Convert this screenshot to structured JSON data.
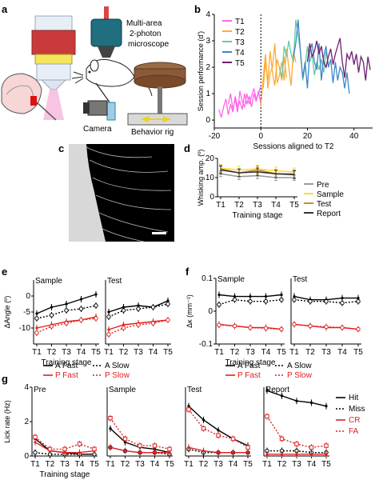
{
  "panel_labels": {
    "a": "a",
    "b": "b",
    "c": "c",
    "d": "d",
    "e": "e",
    "f": "f",
    "g": "g"
  },
  "panel_a": {
    "microscope_label_1": "Multi-area",
    "microscope_label_2": "2-photon",
    "microscope_label_3": "microscope",
    "camera_label": "Camera",
    "rig_label": "Behavior rig"
  },
  "colors": {
    "T1": "#ff66e8",
    "T2": "#ffaa33",
    "T3": "#66c9a5",
    "T4": "#3f86c9",
    "T5": "#6b1f6f",
    "pre": "#9a9a9a",
    "sample": "#ffdd33",
    "test": "#c98a40",
    "report": "#333333",
    "hit": "#000000",
    "cr": "#e02020"
  },
  "chart_data": [
    {
      "panel": "b",
      "type": "line",
      "xlabel": "Sessions aligned to T2",
      "ylabel": "Session performance (d')",
      "xlim": [
        -20,
        48
      ],
      "ylim": [
        -0.3,
        4
      ],
      "xticks": [
        -20,
        0,
        20,
        40
      ],
      "yticks": [
        0,
        1,
        2,
        3,
        4
      ],
      "series": [
        {
          "name": "T1",
          "x": [
            -18,
            -17,
            -16,
            -15,
            -14,
            -13,
            -12,
            -11,
            -10,
            -9,
            -8,
            -7,
            -6,
            -5,
            -4,
            -3,
            -2,
            -1,
            0
          ],
          "y": [
            0.4,
            0.1,
            0.5,
            0.8,
            0.2,
            0.6,
            0.3,
            0.9,
            0.5,
            0.7,
            0.4,
            1.0,
            0.6,
            0.9,
            0.5,
            1.0,
            0.7,
            1.1,
            0.6
          ]
        },
        {
          "name": "T1",
          "x": [
            -14,
            -13,
            -12,
            -11,
            -10,
            -9,
            -8,
            -7,
            -6,
            -5,
            -4,
            -3,
            -2,
            -1,
            0
          ],
          "y": [
            0.6,
            1.0,
            0.4,
            0.8,
            0.3,
            1.1,
            0.7,
            0.5,
            1.0,
            0.6,
            0.9,
            1.2,
            0.8,
            1.0,
            1.3
          ]
        },
        {
          "name": "T2",
          "x": [
            0,
            1,
            2,
            3,
            4,
            5,
            6,
            7,
            8,
            9,
            10,
            11,
            12,
            13,
            14,
            15
          ],
          "y": [
            0.5,
            1.6,
            2.5,
            1.2,
            1.8,
            2.0,
            2.9,
            1.4,
            1.7,
            2.2,
            1.5,
            2.7,
            2.0,
            1.3,
            2.6,
            2.2
          ]
        },
        {
          "name": "T2",
          "x": [
            1,
            2,
            3,
            4,
            5,
            6,
            7,
            8,
            9,
            10,
            11
          ],
          "y": [
            1.2,
            2.2,
            1.5,
            2.6,
            1.8,
            1.3,
            2.3,
            2.0,
            1.5,
            2.4,
            1.6
          ]
        },
        {
          "name": "T3",
          "x": [
            8,
            9,
            10,
            11,
            12,
            13,
            14,
            15,
            16,
            17,
            18,
            19,
            20,
            21,
            22,
            23,
            24,
            25,
            26,
            27,
            28,
            29
          ],
          "y": [
            2.0,
            1.6,
            2.8,
            2.4,
            3.0,
            2.5,
            2.2,
            3.8,
            3.2,
            2.6,
            1.5,
            2.0,
            2.8,
            2.2,
            2.5,
            1.7,
            2.2,
            1.9,
            2.3,
            1.8,
            2.6,
            2.1
          ]
        },
        {
          "name": "T4",
          "x": [
            14,
            15,
            16,
            17,
            18,
            19,
            20,
            21,
            22,
            23,
            24,
            25,
            26,
            27,
            28,
            29,
            30,
            31,
            32,
            33,
            34,
            35,
            36,
            37,
            38
          ],
          "y": [
            2.4,
            2.9,
            3.8,
            2.6,
            1.6,
            2.2,
            1.2,
            2.6,
            2.9,
            2.2,
            1.9,
            2.9,
            1.5,
            2.4,
            2.8,
            2.0,
            2.3,
            1.4,
            2.2,
            1.5,
            2.0,
            1.8,
            1.2,
            1.8,
            1.0
          ]
        },
        {
          "name": "T5",
          "x": [
            20,
            21,
            22,
            23,
            24,
            25,
            26,
            27,
            28,
            29,
            30,
            31,
            32,
            33,
            34,
            35,
            36,
            37,
            38,
            39,
            40,
            41,
            42,
            43,
            44,
            45,
            46,
            47
          ],
          "y": [
            2.2,
            2.9,
            2.4,
            2.6,
            3.0,
            2.5,
            2.8,
            2.2,
            2.0,
            2.4,
            2.7,
            2.1,
            2.5,
            2.8,
            3.1,
            2.2,
            1.6,
            2.5,
            2.3,
            2.6,
            2.1,
            2.5,
            1.8,
            2.4,
            2.2,
            1.5,
            2.4,
            1.9
          ]
        }
      ]
    },
    {
      "panel": "d",
      "type": "line",
      "xlabel": "Training stage",
      "ylabel": "Whisking amp. (º)",
      "categories": [
        "T1",
        "T2",
        "T3",
        "T4",
        "T5"
      ],
      "ylim": [
        0,
        20
      ],
      "yticks": [
        0,
        10,
        20
      ],
      "series": [
        {
          "name": "Pre",
          "values": [
            12,
            10.5,
            11,
            10,
            10
          ],
          "err": [
            1.5,
            1.5,
            1.5,
            1.5,
            1.5
          ]
        },
        {
          "name": "Sample",
          "values": [
            15,
            14,
            14.5,
            13.5,
            13
          ],
          "err": [
            2,
            2,
            2,
            2,
            2
          ]
        },
        {
          "name": "Test",
          "values": [
            14.5,
            12.5,
            14,
            12,
            12
          ],
          "err": [
            2,
            2,
            2,
            2,
            2
          ]
        },
        {
          "name": "Report",
          "values": [
            14,
            12.5,
            13,
            12,
            11.5
          ],
          "err": [
            2,
            2,
            2,
            2,
            2
          ]
        }
      ]
    },
    {
      "panel": "e",
      "type": "line",
      "xlabel": "Training stage",
      "ylabel": "ΔAngle (º)",
      "categories": [
        "T1",
        "T2",
        "T3",
        "T4",
        "T5"
      ],
      "ylim": [
        -15,
        5
      ],
      "yticks": [
        -10,
        -5,
        0
      ],
      "subplots": [
        {
          "title": "Sample",
          "series": [
            {
              "name": "A Fast",
              "values": [
                -5.5,
                -3.5,
                -2.5,
                -1,
                0.5
              ]
            },
            {
              "name": "A Slow",
              "values": [
                -7,
                -6,
                -4.5,
                -4,
                -3
              ]
            },
            {
              "name": "P Fast",
              "values": [
                -10,
                -9,
                -8,
                -7.5,
                -6.5
              ]
            },
            {
              "name": "P Slow",
              "values": [
                -11.5,
                -9.5,
                -8.5,
                -7.5,
                -7
              ]
            }
          ]
        },
        {
          "title": "Test",
          "series": [
            {
              "name": "A Fast",
              "values": [
                -5,
                -3.5,
                -3,
                -3.5,
                -1.5
              ]
            },
            {
              "name": "A Slow",
              "values": [
                -6.5,
                -4.5,
                -4,
                -3.5,
                -2.5
              ]
            },
            {
              "name": "P Fast",
              "values": [
                -10.5,
                -9,
                -8.5,
                -8,
                -7.5
              ]
            },
            {
              "name": "P Slow",
              "values": [
                -12,
                -10,
                -9,
                -8.5,
                -7.5
              ]
            }
          ]
        }
      ]
    },
    {
      "panel": "f",
      "type": "line",
      "xlabel": "Training stage",
      "ylabel": "Δκ (mm⁻¹)",
      "categories": [
        "T1",
        "T2",
        "T3",
        "T4",
        "T5"
      ],
      "ylim": [
        -0.1,
        0.1
      ],
      "yticks": [
        -0.1,
        0,
        0.1
      ],
      "yticklabels": [
        "-0.1",
        "0",
        "0.1"
      ],
      "subplots": [
        {
          "title": "Sample",
          "series": [
            {
              "name": "A Fast",
              "values": [
                0.05,
                0.045,
                0.045,
                0.045,
                0.05
              ]
            },
            {
              "name": "A Slow",
              "values": [
                0.02,
                0.035,
                0.03,
                0.03,
                0.035
              ]
            },
            {
              "name": "P Fast",
              "values": [
                -0.04,
                -0.045,
                -0.05,
                -0.05,
                -0.055
              ]
            },
            {
              "name": "P Slow",
              "values": [
                -0.042,
                -0.045,
                -0.05,
                -0.052,
                -0.055
              ]
            }
          ]
        },
        {
          "title": "Test",
          "series": [
            {
              "name": "A Fast",
              "values": [
                0.045,
                0.035,
                0.035,
                0.04,
                0.04
              ]
            },
            {
              "name": "A Slow",
              "values": [
                0.035,
                0.03,
                0.03,
                0.025,
                0.03
              ]
            },
            {
              "name": "P Fast",
              "values": [
                -0.04,
                -0.045,
                -0.05,
                -0.05,
                -0.055
              ]
            },
            {
              "name": "P Slow",
              "values": [
                -0.04,
                -0.045,
                -0.048,
                -0.05,
                -0.055
              ]
            }
          ]
        }
      ]
    },
    {
      "panel": "g",
      "type": "line",
      "xlabel": "Training stage",
      "ylabel": "Lick rate (Hz)",
      "categories": [
        "T1",
        "T2",
        "T3",
        "T4",
        "T5"
      ],
      "ylim": [
        0,
        4
      ],
      "yticks": [
        0,
        2,
        4
      ],
      "subplots": [
        {
          "title": "Pre",
          "series": [
            {
              "name": "Hit",
              "values": [
                1.0,
                0.3,
                0.2,
                0.1,
                0.1
              ]
            },
            {
              "name": "Miss",
              "values": [
                0.2,
                0.1,
                0.1,
                0.1,
                0.1
              ]
            },
            {
              "name": "CR",
              "values": [
                0.8,
                0.3,
                0.2,
                0.2,
                0.3
              ]
            },
            {
              "name": "FA",
              "values": [
                1.1,
                0.4,
                0.4,
                0.7,
                0.4
              ]
            }
          ]
        },
        {
          "title": "Sample",
          "series": [
            {
              "name": "Hit",
              "values": [
                1.6,
                0.8,
                0.5,
                0.4,
                0.2
              ]
            },
            {
              "name": "Miss",
              "values": [
                0.5,
                0.3,
                0.2,
                0.2,
                0.1
              ]
            },
            {
              "name": "CR",
              "values": [
                0.5,
                0.3,
                0.2,
                0.2,
                0.2
              ]
            },
            {
              "name": "FA",
              "values": [
                2.2,
                1.0,
                0.6,
                0.6,
                0.4
              ]
            }
          ]
        },
        {
          "title": "Test",
          "series": [
            {
              "name": "Hit",
              "values": [
                2.9,
                2.1,
                1.5,
                1.0,
                0.6
              ]
            },
            {
              "name": "Miss",
              "values": [
                0.4,
                0.2,
                0.2,
                0.2,
                0.2
              ]
            },
            {
              "name": "CR",
              "values": [
                0.5,
                0.3,
                0.2,
                0.2,
                0.2
              ]
            },
            {
              "name": "FA",
              "values": [
                2.7,
                1.6,
                1.2,
                1.0,
                0.5
              ]
            }
          ]
        },
        {
          "title": "Report",
          "series": [
            {
              "name": "Hit",
              "values": [
                3.8,
                3.5,
                3.2,
                3.1,
                2.9
              ]
            },
            {
              "name": "Miss",
              "values": [
                0.3,
                0.3,
                0.3,
                0.2,
                0.2
              ]
            },
            {
              "name": "CR",
              "values": [
                0.1,
                0.1,
                0.1,
                0.1,
                0.1
              ]
            },
            {
              "name": "FA",
              "values": [
                2.3,
                1.0,
                0.7,
                0.5,
                0.6
              ]
            }
          ]
        }
      ]
    }
  ]
}
